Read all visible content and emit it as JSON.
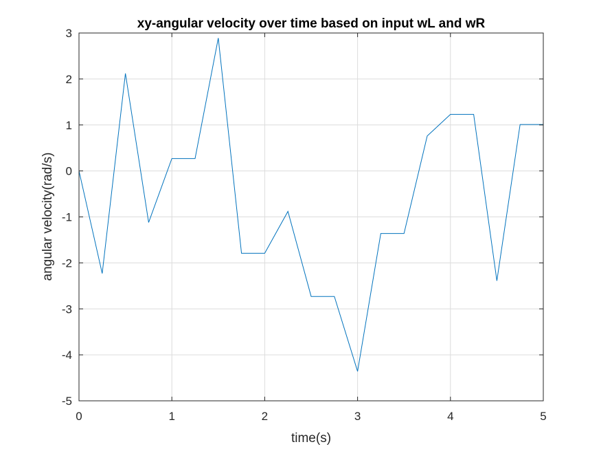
{
  "chart_data": {
    "type": "line",
    "title": "xy-angular velocity over time based on input wL and wR",
    "xlabel": "time(s)",
    "ylabel": "angular velocity(rad/s)",
    "xlim": [
      0,
      5
    ],
    "ylim": [
      -5,
      3
    ],
    "xticks": [
      "0",
      "1",
      "2",
      "3",
      "4",
      "5"
    ],
    "yticks": [
      "-5",
      "-4",
      "-3",
      "-2",
      "-1",
      "0",
      "1",
      "2",
      "3"
    ],
    "grid": true,
    "legend": "none",
    "series": [
      {
        "color": "#0072BD",
        "x": [
          0,
          0.25,
          0.5,
          0.75,
          1.0,
          1.25,
          1.5,
          1.75,
          2.0,
          2.25,
          2.5,
          2.75,
          3.0,
          3.25,
          3.5,
          3.75,
          4.0,
          4.25,
          4.5,
          4.75,
          5.0
        ],
        "y": [
          0,
          -2.23,
          2.12,
          -1.12,
          0.27,
          0.27,
          2.89,
          -1.79,
          -1.79,
          -0.88,
          -2.73,
          -2.73,
          -4.36,
          -1.36,
          -1.36,
          0.76,
          1.23,
          1.23,
          -2.39,
          1.01,
          1.01
        ]
      }
    ]
  }
}
